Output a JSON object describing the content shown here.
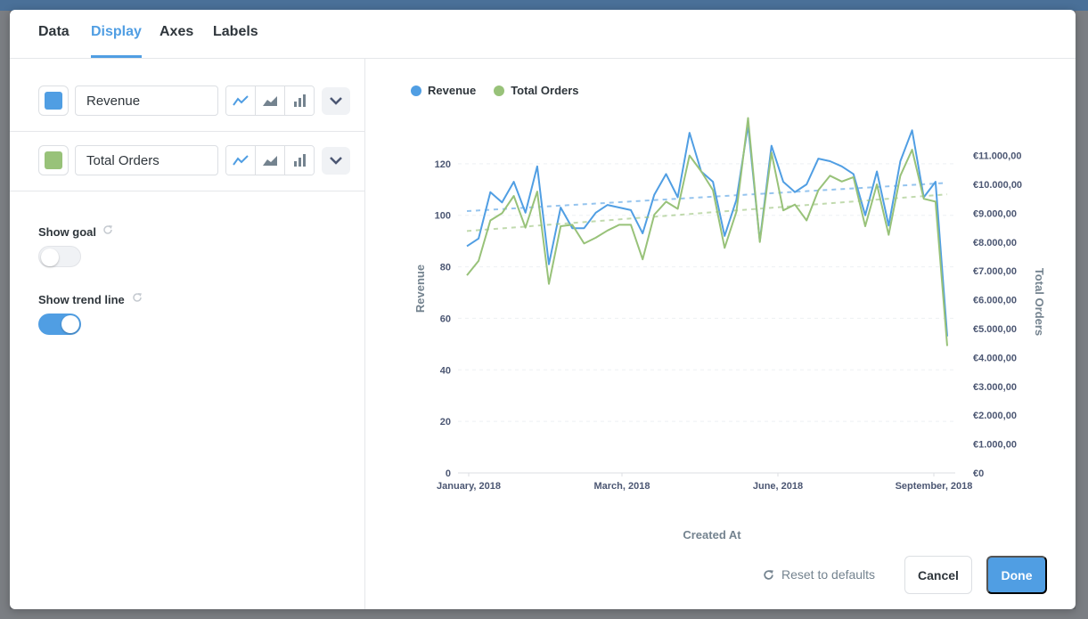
{
  "tabs": [
    {
      "label": "Data",
      "active": false
    },
    {
      "label": "Display",
      "active": true
    },
    {
      "label": "Axes",
      "active": false
    },
    {
      "label": "Labels",
      "active": false
    }
  ],
  "series": [
    {
      "name": "Revenue",
      "color": "#509ee3"
    },
    {
      "name": "Total Orders",
      "color": "#98c279"
    }
  ],
  "settings": {
    "show_goal": {
      "label": "Show goal",
      "enabled": false
    },
    "show_trend_line": {
      "label": "Show trend line",
      "enabled": true
    }
  },
  "footer": {
    "reset_label": "Reset to defaults",
    "cancel_label": "Cancel",
    "done_label": "Done"
  },
  "chart_data": {
    "type": "line",
    "xlabel": "Created At",
    "ylabel_left": "Revenue",
    "ylabel_right": "Total Orders",
    "x_tick_labels": [
      "January, 2018",
      "March, 2018",
      "June, 2018",
      "September, 2018"
    ],
    "y_left_ticks": [
      0,
      20,
      40,
      60,
      80,
      100,
      120
    ],
    "y_right_ticks": [
      "€0",
      "€1.000,00",
      "€2.000,00",
      "€3.000,00",
      "€4.000,00",
      "€5.000,00",
      "€6.000,00",
      "€7.000,00",
      "€8.000,00",
      "€9.000,00",
      "€10.000,00",
      "€11.000,00"
    ],
    "ylim_left": [
      0,
      140
    ],
    "ylim_right": [
      0,
      12500
    ],
    "grid": true,
    "legend_position": "top-left",
    "trend_lines": true,
    "series": [
      {
        "name": "Revenue",
        "axis": "left",
        "color": "#509ee3",
        "values": [
          88,
          91,
          109,
          105,
          113,
          101,
          119,
          81,
          103,
          95,
          95,
          101,
          104,
          103,
          102,
          93,
          108,
          116,
          107,
          132,
          117,
          113,
          92,
          106,
          135,
          90,
          127,
          113,
          109,
          112,
          122,
          121,
          119,
          116,
          100,
          117,
          96,
          121,
          133,
          107,
          113,
          53
        ]
      },
      {
        "name": "Total Orders",
        "axis": "right",
        "color": "#98c279",
        "values": [
          6850,
          7350,
          8750,
          9000,
          9600,
          8500,
          9750,
          6550,
          8550,
          8600,
          7950,
          8150,
          8400,
          8600,
          8600,
          7400,
          8950,
          9400,
          9150,
          11000,
          10450,
          9800,
          7800,
          9050,
          12300,
          8000,
          11100,
          9100,
          9300,
          8750,
          9800,
          10300,
          10100,
          10250,
          8550,
          10000,
          8250,
          10300,
          11200,
          9500,
          9400,
          4400
        ]
      }
    ]
  }
}
